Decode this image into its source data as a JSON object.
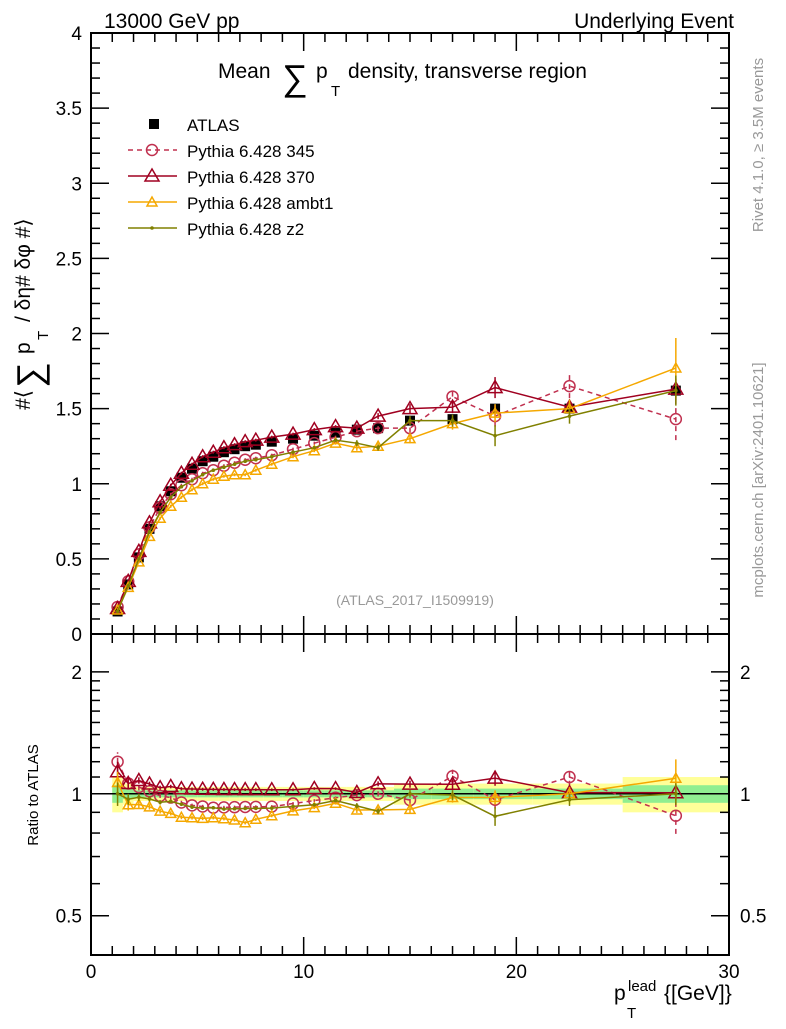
{
  "chart_data": {
    "type": "line",
    "header_left": "13000 GeV pp",
    "header_right": "Underlying Event",
    "title_prefix": "Mean",
    "title_sum": "∑",
    "title_p": "p",
    "title_sub": "T",
    "title_suffix": "density, transverse region",
    "ylabel": "#⟨ ∑ p_T / δη# δφ #⟩",
    "ylabel_parts": {
      "pre": "#⟨",
      "sum": "∑",
      "p": "p",
      "sub": "T",
      "post": "/ δη# δφ #⟩"
    },
    "ratio_ylabel": "Ratio to ATLAS",
    "xlabel_p": "p",
    "xlabel_sup": "lead",
    "xlabel_sub": "T",
    "xlabel_unit": "{[GeV]}",
    "watermark": "(ATLAS_2017_I1509919)",
    "side_label_1": "Rivet 4.1.0, ≥ 3.5M events",
    "side_label_2": "mcplots.cern.ch [arXiv:2401.10621]",
    "xlim": [
      0,
      30
    ],
    "ylim": [
      0,
      4
    ],
    "ratio_ylim": [
      0.4,
      2.48
    ],
    "x_ticks": [
      "0",
      "10",
      "20",
      "30"
    ],
    "y_ticks": [
      "0",
      "0.5",
      "1",
      "1.5",
      "2",
      "2.5",
      "3",
      "3.5",
      "4"
    ],
    "ratio_ticks": [
      "0.5",
      "1",
      "2"
    ],
    "legend_position": "top-left",
    "x": [
      1.25,
      1.75,
      2.25,
      2.75,
      3.25,
      3.75,
      4.25,
      4.75,
      5.25,
      5.75,
      6.25,
      6.75,
      7.25,
      7.75,
      8.5,
      9.5,
      10.5,
      11.5,
      12.5,
      13.5,
      15,
      17,
      19,
      22.5,
      27.5
    ],
    "data": {
      "name": "ATLAS",
      "values": [
        0.15,
        0.33,
        0.51,
        0.7,
        0.85,
        0.95,
        1.04,
        1.1,
        1.15,
        1.18,
        1.21,
        1.23,
        1.25,
        1.26,
        1.28,
        1.3,
        1.32,
        1.34,
        1.36,
        1.37,
        1.42,
        1.43,
        1.5,
        1.5,
        1.62
      ],
      "rel_err": [
        0.05,
        0.03,
        0.02,
        0.02,
        0.02,
        0.02,
        0.02,
        0.02,
        0.02,
        0.02,
        0.02,
        0.02,
        0.02,
        0.02,
        0.02,
        0.02,
        0.02,
        0.02,
        0.02,
        0.02,
        0.03,
        0.03,
        0.03,
        0.03,
        0.05
      ]
    },
    "series": [
      {
        "name": "Pythia 6.428 345",
        "color": "#c0304f",
        "marker": "circle",
        "dashed": true,
        "values": [
          0.18,
          0.35,
          0.53,
          0.71,
          0.84,
          0.93,
          0.99,
          1.03,
          1.07,
          1.09,
          1.12,
          1.14,
          1.16,
          1.17,
          1.19,
          1.23,
          1.27,
          1.31,
          1.35,
          1.37,
          1.37,
          1.58,
          1.45,
          1.65,
          1.43
        ],
        "err": [
          0.01,
          0.01,
          0.01,
          0.01,
          0.01,
          0.01,
          0.01,
          0.01,
          0.01,
          0.01,
          0.01,
          0.01,
          0.01,
          0.01,
          0.01,
          0.01,
          0.01,
          0.01,
          0.02,
          0.02,
          0.03,
          0.06,
          0.07,
          0.08,
          0.14
        ]
      },
      {
        "name": "Pythia 6.428 370",
        "color": "#a00020",
        "marker": "triangle",
        "dashed": false,
        "values": [
          0.17,
          0.35,
          0.55,
          0.74,
          0.88,
          0.99,
          1.07,
          1.13,
          1.18,
          1.21,
          1.24,
          1.26,
          1.28,
          1.29,
          1.31,
          1.33,
          1.36,
          1.38,
          1.37,
          1.45,
          1.5,
          1.51,
          1.64,
          1.51,
          1.63
        ],
        "err": [
          0.01,
          0.01,
          0.01,
          0.01,
          0.01,
          0.01,
          0.01,
          0.01,
          0.01,
          0.01,
          0.01,
          0.01,
          0.01,
          0.01,
          0.01,
          0.01,
          0.01,
          0.01,
          0.02,
          0.02,
          0.03,
          0.04,
          0.07,
          0.04,
          0.07
        ]
      },
      {
        "name": "Pythia 6.428 ambt1",
        "color": "#f5a800",
        "marker": "triangle-small",
        "dashed": false,
        "values": [
          0.16,
          0.31,
          0.48,
          0.65,
          0.77,
          0.85,
          0.91,
          0.96,
          1.0,
          1.03,
          1.05,
          1.06,
          1.06,
          1.09,
          1.13,
          1.18,
          1.22,
          1.27,
          1.24,
          1.25,
          1.3,
          1.4,
          1.47,
          1.5,
          1.77
        ],
        "err": [
          0.01,
          0.01,
          0.01,
          0.01,
          0.01,
          0.01,
          0.01,
          0.01,
          0.01,
          0.01,
          0.01,
          0.01,
          0.01,
          0.01,
          0.01,
          0.01,
          0.01,
          0.01,
          0.02,
          0.02,
          0.03,
          0.04,
          0.06,
          0.06,
          0.2
        ]
      },
      {
        "name": "Pythia 6.428 z2",
        "color": "#808000",
        "marker": "dot",
        "dashed": false,
        "values": [
          0.15,
          0.32,
          0.5,
          0.68,
          0.81,
          0.91,
          0.98,
          1.02,
          1.06,
          1.09,
          1.11,
          1.13,
          1.15,
          1.16,
          1.18,
          1.21,
          1.24,
          1.29,
          1.27,
          1.24,
          1.42,
          1.42,
          1.32,
          1.45,
          1.62
        ],
        "err": [
          0.01,
          0.01,
          0.01,
          0.01,
          0.01,
          0.01,
          0.01,
          0.01,
          0.01,
          0.01,
          0.01,
          0.01,
          0.01,
          0.01,
          0.01,
          0.01,
          0.01,
          0.01,
          0.02,
          0.02,
          0.03,
          0.04,
          0.07,
          0.05,
          0.1
        ]
      }
    ]
  }
}
